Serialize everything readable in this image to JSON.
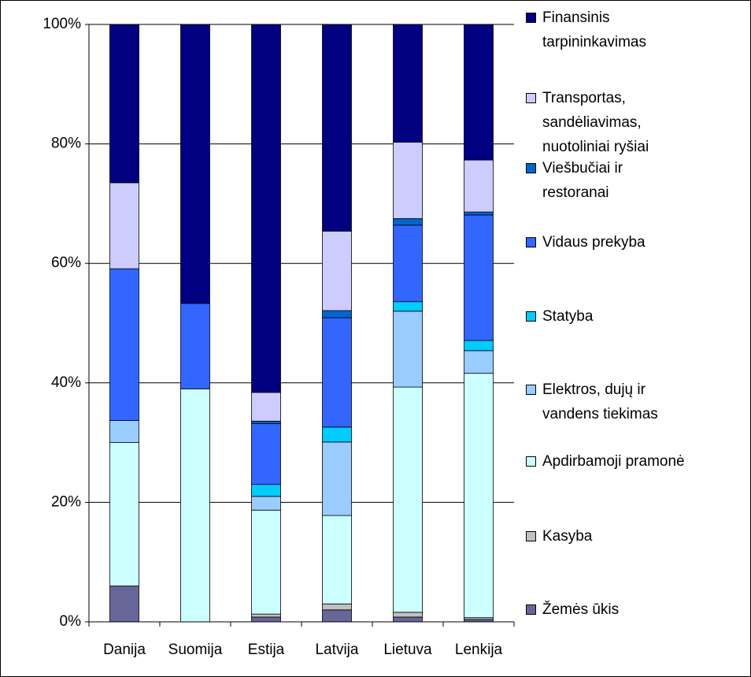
{
  "chart_data": {
    "type": "stacked_bar",
    "categories": [
      "Danija",
      "Suomija",
      "Estija",
      "Latvija",
      "Lietuva",
      "Lenkija"
    ],
    "series": [
      {
        "name": "Žemės ūkis",
        "color": "#666699",
        "values": [
          6,
          0,
          0.8,
          2,
          0.8,
          0.4
        ]
      },
      {
        "name": "Kasyba",
        "color": "#c0c0c0",
        "values": [
          0,
          0,
          0.5,
          1,
          0.8,
          0.3
        ]
      },
      {
        "name": "Apdirbamoji pramonė",
        "color": "#ccffff",
        "values": [
          24,
          39,
          17.4,
          14.8,
          37.7,
          40.9
        ]
      },
      {
        "name": "Elektros, dujų ir vandens tiekimas",
        "color": "#99ccff",
        "values": [
          3.7,
          0,
          2.3,
          12.3,
          12.7,
          3.8
        ]
      },
      {
        "name": "Statyba",
        "color": "#00ccff",
        "values": [
          0,
          0,
          2,
          2.5,
          1.6,
          1.7
        ]
      },
      {
        "name": "Vidaus prekyba",
        "color": "#3366ff",
        "values": [
          25.4,
          14.3,
          10.2,
          18.3,
          12.8,
          21
        ]
      },
      {
        "name": "Viešbučiai ir restoranai",
        "color": "#0066cc",
        "values": [
          0,
          0,
          0.4,
          1.2,
          1.1,
          0.5
        ]
      },
      {
        "name": "Transportas, sandėliavimas, nuotoliniai ryšiai",
        "color": "#ccccff",
        "values": [
          14.4,
          0,
          4.8,
          13.3,
          12.8,
          8.7
        ]
      },
      {
        "name": "Finansinis tarpininkavimas",
        "color": "#000080",
        "values": [
          26.5,
          46.7,
          61.6,
          34.6,
          19.7,
          22.7
        ]
      }
    ],
    "ylim": [
      0,
      100
    ],
    "yticks": [
      {
        "value": 0,
        "label": "0%"
      },
      {
        "value": 20,
        "label": "20%"
      },
      {
        "value": 40,
        "label": "40%"
      },
      {
        "value": 60,
        "label": "60%"
      },
      {
        "value": 80,
        "label": "80%"
      },
      {
        "value": 100,
        "label": "100%"
      }
    ],
    "grid": true,
    "legend": "right"
  }
}
